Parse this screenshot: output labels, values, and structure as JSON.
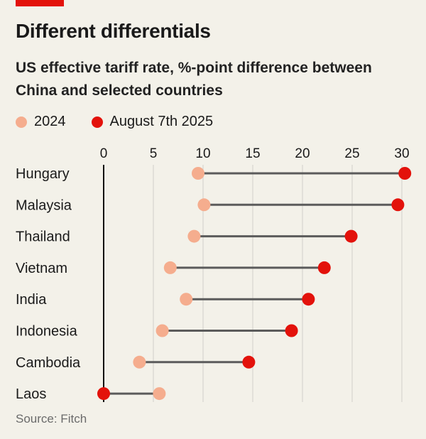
{
  "header": {
    "title": "Different differentials",
    "subtitle": "US effective tariff rate, %-point difference between China and selected countries"
  },
  "legend": {
    "items": [
      {
        "label": "2024",
        "color": "#f5ad8e"
      },
      {
        "label": "August 7th 2025",
        "color": "#e3120b"
      }
    ]
  },
  "source": "Source: Fitch",
  "colors": {
    "accent": "#e3120b",
    "series_2024": "#f5ad8e",
    "series_2025": "#e3120b",
    "connector": "#5b5b5b"
  },
  "chart_data": {
    "type": "dumbbell",
    "xlim": [
      0,
      30
    ],
    "xticks": [
      0,
      5,
      10,
      15,
      20,
      25,
      30
    ],
    "grid": true,
    "categories": [
      "Hungary",
      "Malaysia",
      "Thailand",
      "Vietnam",
      "India",
      "Indonesia",
      "Cambodia",
      "Laos"
    ],
    "series": [
      {
        "name": "2024",
        "values": [
          9.5,
          10.1,
          9.1,
          6.7,
          8.3,
          5.9,
          3.6,
          5.6
        ]
      },
      {
        "name": "August 7th 2025",
        "values": [
          30.3,
          29.6,
          24.9,
          22.2,
          20.6,
          18.9,
          14.6,
          0.0
        ]
      }
    ]
  }
}
